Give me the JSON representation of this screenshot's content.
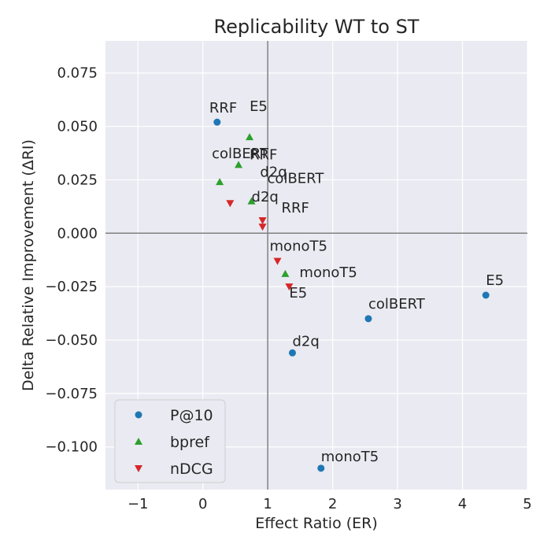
{
  "chart_data": {
    "type": "scatter",
    "title": "Replicability WT to ST",
    "xlabel": "Effect Ratio (ER)",
    "ylabel": "Delta Relative Improvement (ΔRI)",
    "xlim": [
      -1.5,
      5.0
    ],
    "ylim": [
      -0.12,
      0.09
    ],
    "xticks": [
      -1,
      0,
      1,
      2,
      3,
      4,
      5
    ],
    "xtick_labels": [
      "−1",
      "0",
      "1",
      "2",
      "3",
      "4",
      "5"
    ],
    "yticks": [
      -0.1,
      -0.075,
      -0.05,
      -0.025,
      0.0,
      0.025,
      0.05,
      0.075
    ],
    "ytick_labels": [
      "−0.100",
      "−0.075",
      "−0.050",
      "−0.025",
      "0.000",
      "0.025",
      "0.050",
      "0.075"
    ],
    "reference_lines": {
      "x": 1.0,
      "y": 0.0
    },
    "grid": true,
    "legend_position": "lower-left",
    "series": [
      {
        "name": "P@10",
        "marker": "circle",
        "color": "#1f77b4",
        "points": [
          {
            "x": 0.22,
            "y": 0.052,
            "label": "RRF"
          },
          {
            "x": 4.36,
            "y": -0.029,
            "label": "E5"
          },
          {
            "x": 2.55,
            "y": -0.04,
            "label": "colBERT"
          },
          {
            "x": 1.38,
            "y": -0.056,
            "label": "d2q"
          },
          {
            "x": 1.82,
            "y": -0.11,
            "label": "monoT5"
          }
        ]
      },
      {
        "name": "bpref",
        "marker": "triangle-up",
        "color": "#2ca02c",
        "points": [
          {
            "x": 0.72,
            "y": 0.045,
            "label": "E5"
          },
          {
            "x": 0.55,
            "y": 0.032,
            "label": "RRF"
          },
          {
            "x": 0.26,
            "y": 0.024,
            "label": "colBERT"
          },
          {
            "x": 0.75,
            "y": 0.015,
            "label": "colBERT"
          },
          {
            "x": 1.27,
            "y": -0.019,
            "label": "monoT5"
          }
        ]
      },
      {
        "name": "nDCG",
        "marker": "triangle-down",
        "color": "#d62728",
        "points": [
          {
            "x": 0.42,
            "y": 0.014,
            "label": "d2q"
          },
          {
            "x": 0.92,
            "y": 0.006,
            "label": "d2q"
          },
          {
            "x": 0.92,
            "y": 0.003,
            "label": "RRF"
          },
          {
            "x": 1.15,
            "y": -0.013,
            "label": "monoT5"
          },
          {
            "x": 1.33,
            "y": -0.025,
            "label": "E5"
          }
        ]
      }
    ]
  }
}
